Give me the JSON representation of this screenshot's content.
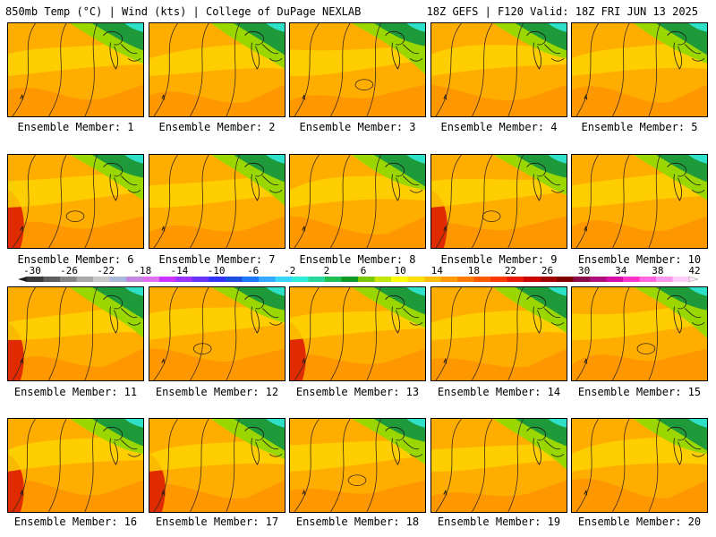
{
  "header": {
    "left_title": "850mb Temp (°C) | Wind (kts) | College of DuPage NEXLAB",
    "right_title": "18Z GEFS | F120 Valid: 18Z FRI JUN 13 2025"
  },
  "colorbar": {
    "labels": [
      "-30",
      "-26",
      "-22",
      "-18",
      "-14",
      "-10",
      "-6",
      "-2",
      "2",
      "6",
      "10",
      "14",
      "18",
      "22",
      "26",
      "30",
      "34",
      "38",
      "42"
    ],
    "colors": [
      "#3a3a3a",
      "#5e5e5e",
      "#858585",
      "#a8a8a8",
      "#c8c8c8",
      "#a9b7d8",
      "#c388e0",
      "#e070f0",
      "#cc33ff",
      "#9a33ff",
      "#6633ff",
      "#3333ff",
      "#1b4fe0",
      "#1e78ff",
      "#33aaff",
      "#38d6ff",
      "#31ecd8",
      "#2ad79a",
      "#1fbf56",
      "#0e9a27",
      "#7ac800",
      "#c2e600",
      "#ffff00",
      "#ffdd00",
      "#ffbd00",
      "#ff9b00",
      "#ff7a00",
      "#ff5a00",
      "#ff3a00",
      "#e81a00",
      "#c80000",
      "#a00000",
      "#800000",
      "#8a0d4a",
      "#b00e7a",
      "#d60fa8",
      "#ff33cc",
      "#ff66e0",
      "#ff99ee",
      "#ffccf5"
    ]
  },
  "members": [
    {
      "label": "Ensemble Member: 1"
    },
    {
      "label": "Ensemble Member: 2"
    },
    {
      "label": "Ensemble Member: 3"
    },
    {
      "label": "Ensemble Member: 4"
    },
    {
      "label": "Ensemble Member: 5"
    },
    {
      "label": "Ensemble Member: 6"
    },
    {
      "label": "Ensemble Member: 7"
    },
    {
      "label": "Ensemble Member: 8"
    },
    {
      "label": "Ensemble Member: 9"
    },
    {
      "label": "Ensemble Member: 10"
    },
    {
      "label": "Ensemble Member: 11"
    },
    {
      "label": "Ensemble Member: 12"
    },
    {
      "label": "Ensemble Member: 13"
    },
    {
      "label": "Ensemble Member: 14"
    },
    {
      "label": "Ensemble Member: 15"
    },
    {
      "label": "Ensemble Member: 16"
    },
    {
      "label": "Ensemble Member: 17"
    },
    {
      "label": "Ensemble Member: 18"
    },
    {
      "label": "Ensemble Member: 19"
    },
    {
      "label": "Ensemble Member: 20"
    }
  ]
}
